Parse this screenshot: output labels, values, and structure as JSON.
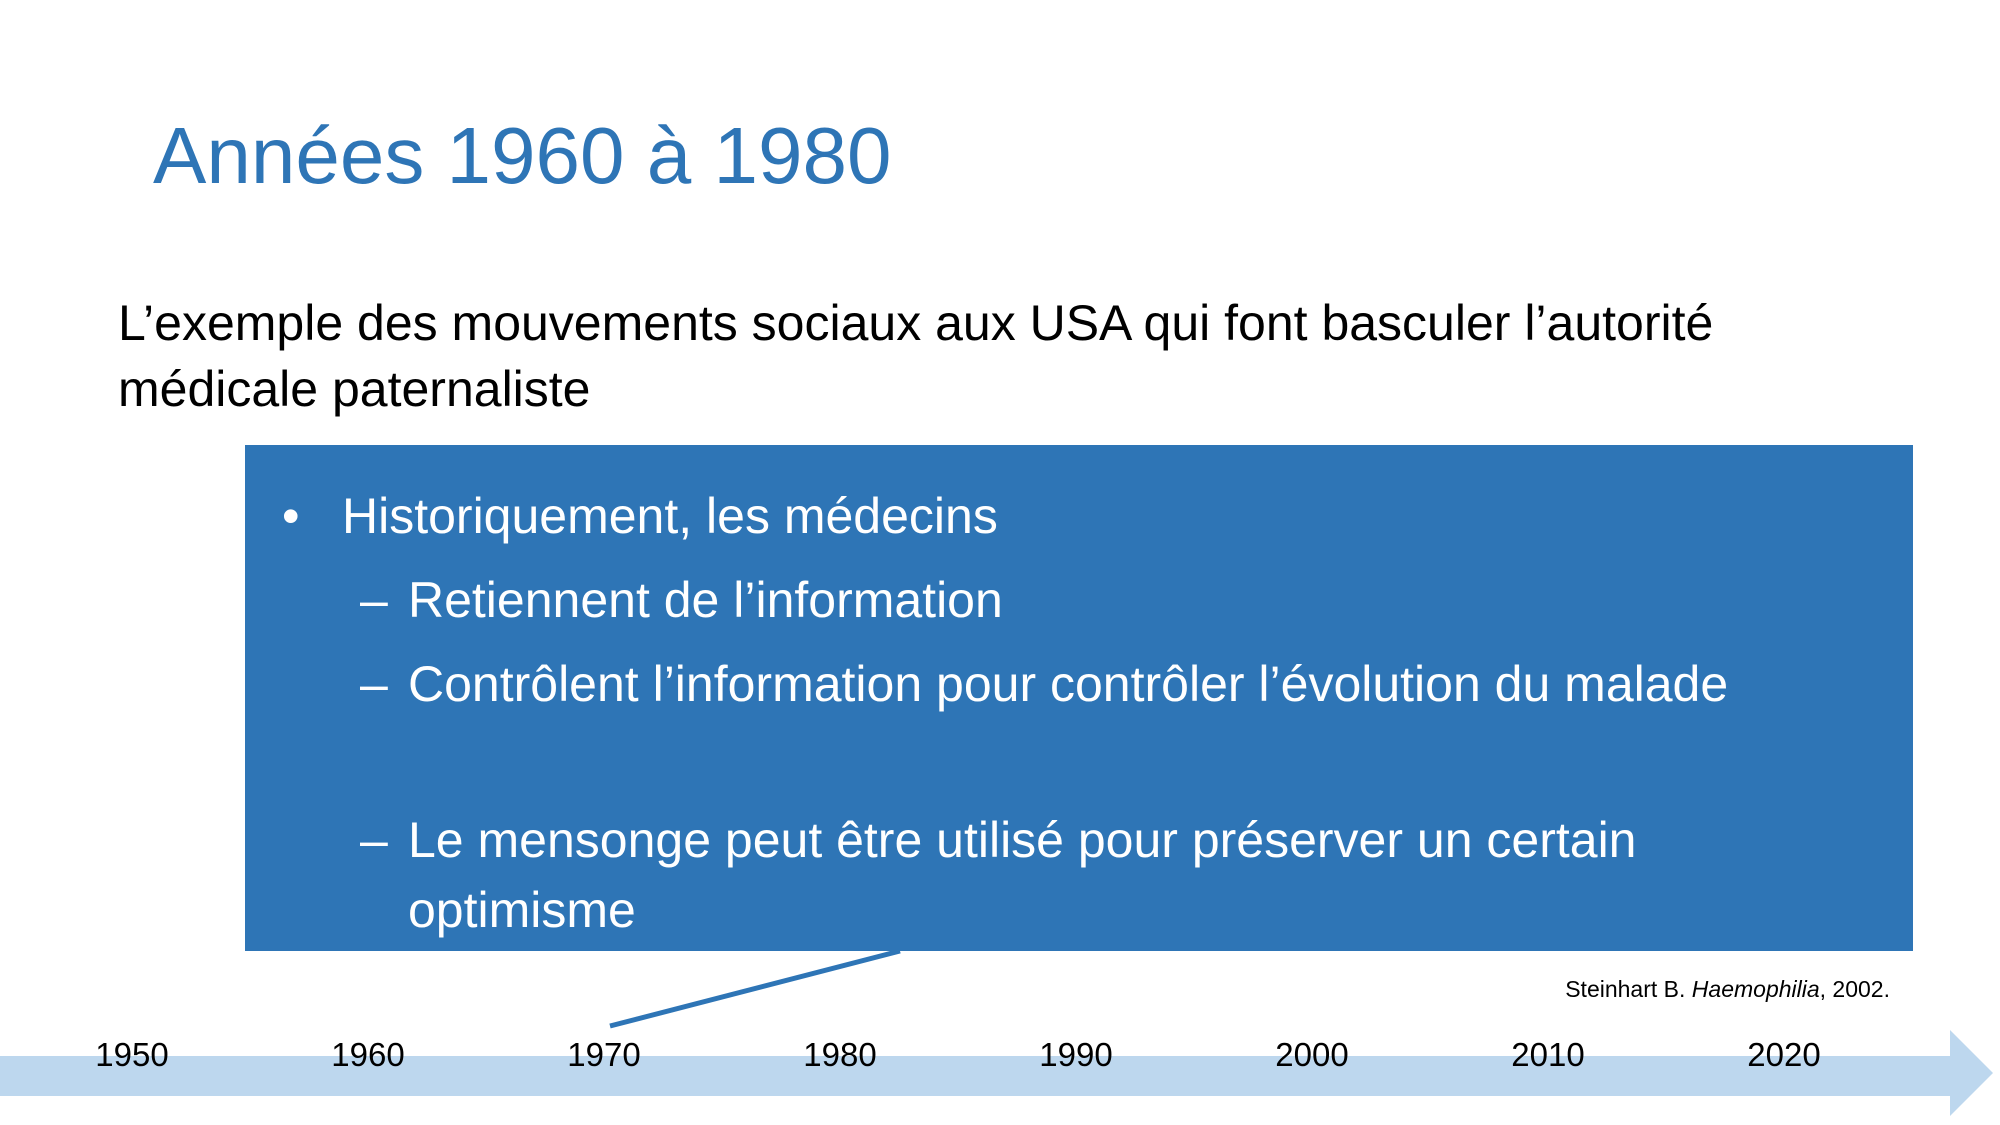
{
  "slide": {
    "title": "Années 1960 à 1980",
    "subtitle": "L’exemple des mouvements sociaux aux USA qui font basculer l’autorité médicale paternaliste",
    "callout": {
      "bullet_symbol": "•",
      "bullet": "Historiquement, les médecins",
      "dash_symbol": "–",
      "sub_items": [
        "Retiennent de l’information",
        "Contrôlent l’information pour contrôler l’évolution du malade",
        "Le mensonge peut être utilisé pour préserver un certain optimisme"
      ]
    },
    "citation": {
      "author": "Steinhart B.",
      "journal": "Haemophilia",
      "year": ", 2002."
    },
    "timeline": {
      "years": [
        "1950",
        "1960",
        "1970",
        "1980",
        "1990",
        "2000",
        "2010",
        "2020"
      ],
      "pointer_year": "1970"
    }
  },
  "colors": {
    "title": "#2e75b6",
    "callout_bg": "#2e75b6",
    "timeline_arrow": "#bdd7ee",
    "text": "#000000"
  }
}
